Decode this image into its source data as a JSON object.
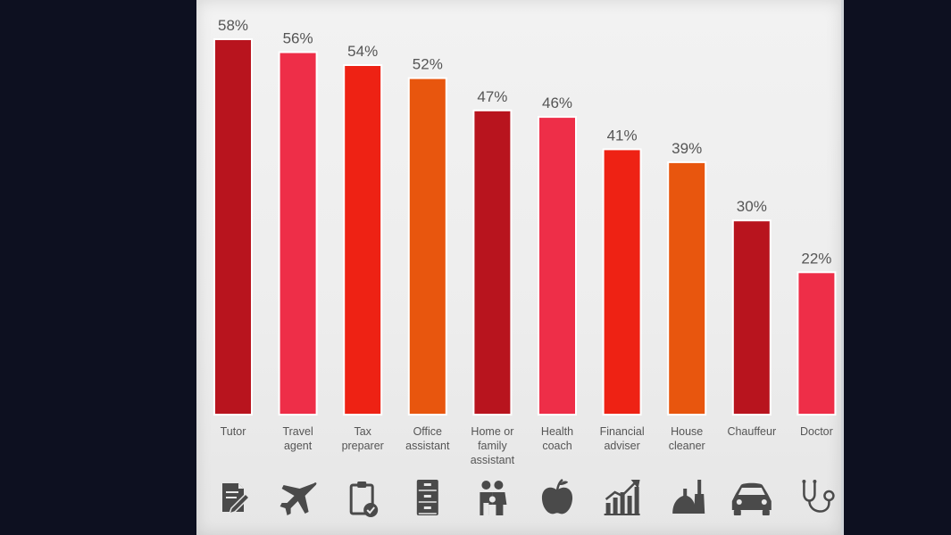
{
  "chart_data": {
    "type": "bar",
    "title": "",
    "xlabel": "",
    "ylabel": "",
    "ylim": [
      0,
      58
    ],
    "grid": false,
    "categories": [
      [
        "Tutor"
      ],
      [
        "Travel",
        "agent"
      ],
      [
        "Tax",
        "preparer"
      ],
      [
        "Office",
        "assistant"
      ],
      [
        "Home or",
        "family",
        "assistant"
      ],
      [
        "Health",
        "coach"
      ],
      [
        "Financial",
        "adviser"
      ],
      [
        "House",
        "cleaner"
      ],
      [
        "Chauffeur"
      ],
      [
        "Doctor"
      ]
    ],
    "values": [
      58,
      56,
      54,
      52,
      47,
      46,
      41,
      39,
      30,
      22
    ],
    "value_labels": [
      "58%",
      "56%",
      "54%",
      "52%",
      "47%",
      "46%",
      "41%",
      "39%",
      "30%",
      "22%"
    ],
    "colors": [
      "#b8141e",
      "#ee2e48",
      "#ee2214",
      "#e8560e",
      "#b8141e",
      "#ee2e48",
      "#ee2214",
      "#e8560e",
      "#b8141e",
      "#ee2e48"
    ],
    "icons": [
      "document-pen-icon",
      "airplane-icon",
      "clipboard-check-icon",
      "file-cabinet-icon",
      "family-icon",
      "apple-icon",
      "growth-chart-icon",
      "broom-dustpan-icon",
      "car-icon",
      "stethoscope-icon"
    ]
  },
  "style": {
    "icon_color": "#4a4a4a",
    "text_color": "#555555"
  }
}
